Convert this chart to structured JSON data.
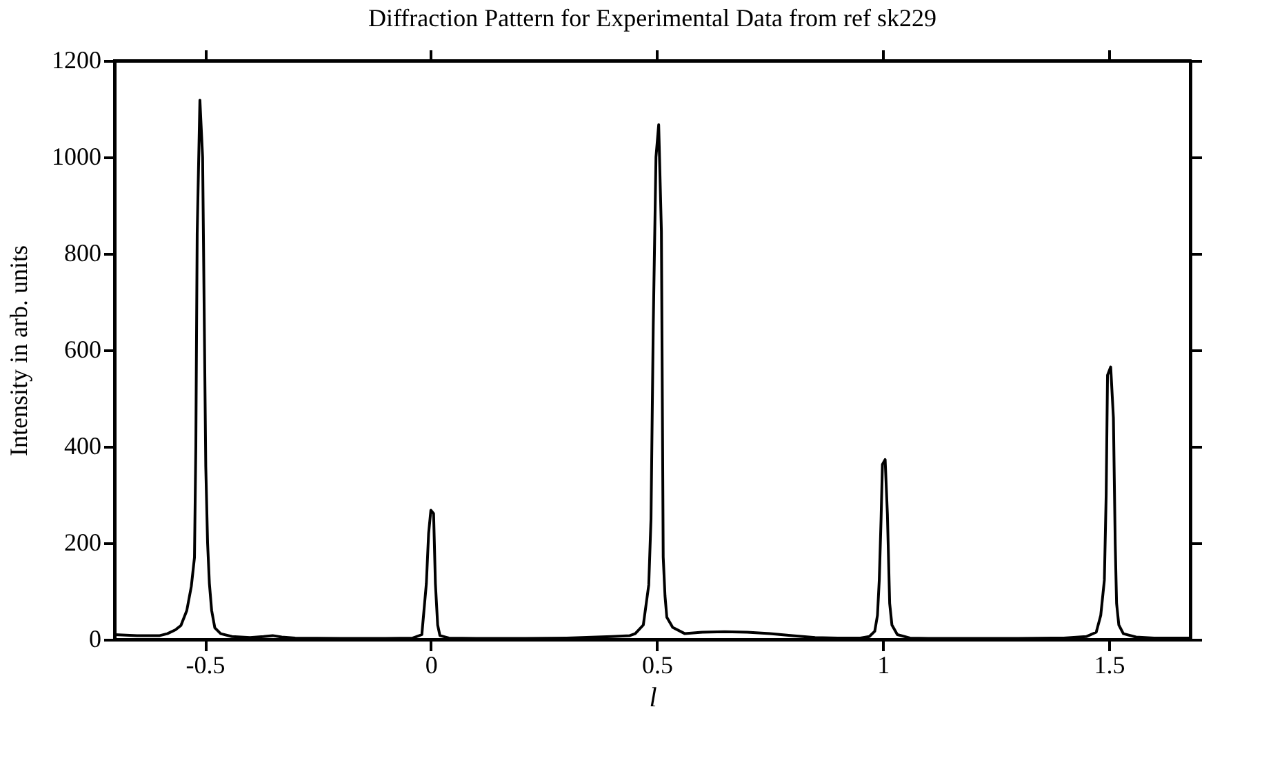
{
  "chart_data": {
    "type": "line",
    "title": "Diffraction Pattern for Experimental Data from ref sk229",
    "xlabel": "l",
    "ylabel": "Intensity in arb. units",
    "series": [
      {
        "color": "#000000",
        "x": [
          -0.7,
          -0.65,
          -0.6,
          -0.583,
          -0.565,
          -0.553,
          -0.54,
          -0.53,
          -0.523,
          -0.52,
          -0.517,
          -0.511,
          -0.505,
          -0.498,
          -0.494,
          -0.49,
          -0.485,
          -0.478,
          -0.465,
          -0.44,
          -0.4,
          -0.37,
          -0.35,
          -0.33,
          -0.3,
          -0.2,
          -0.1,
          -0.04,
          -0.02,
          -0.01,
          -0.005,
          0.0,
          0.006,
          0.01,
          0.015,
          0.02,
          0.04,
          0.1,
          0.2,
          0.3,
          0.4,
          0.44,
          0.452,
          0.47,
          0.482,
          0.487,
          0.492,
          0.498,
          0.504,
          0.51,
          0.514,
          0.518,
          0.522,
          0.535,
          0.562,
          0.6,
          0.65,
          0.7,
          0.75,
          0.8,
          0.85,
          0.9,
          0.95,
          0.97,
          0.982,
          0.988,
          0.992,
          0.996,
          0.999,
          1.005,
          1.01,
          1.015,
          1.02,
          1.032,
          1.06,
          1.1,
          1.2,
          1.3,
          1.4,
          1.45,
          1.472,
          1.482,
          1.49,
          1.494,
          1.497,
          1.504,
          1.51,
          1.514,
          1.517,
          1.522,
          1.532,
          1.56,
          1.6,
          1.65,
          1.68
        ],
        "values": [
          10,
          8,
          8,
          12,
          20,
          29,
          60,
          110,
          170,
          400,
          842,
          1118,
          1000,
          358,
          200,
          116,
          60,
          24,
          12,
          6,
          4,
          6,
          8,
          5,
          3,
          2,
          2,
          3,
          10,
          116,
          220,
          268,
          261,
          116,
          30,
          8,
          3,
          2,
          2,
          3,
          6,
          8,
          12,
          30,
          113,
          250,
          652,
          1000,
          1067,
          846,
          171,
          90,
          46,
          25,
          12,
          15,
          16,
          15,
          12,
          8,
          4,
          3,
          3,
          6,
          17,
          50,
          123,
          250,
          363,
          373,
          260,
          75,
          30,
          10,
          3,
          2,
          2,
          2,
          3,
          6,
          15,
          50,
          123,
          300,
          548,
          565,
          460,
          200,
          75,
          30,
          12,
          5,
          3,
          3,
          3
        ]
      }
    ],
    "xlim": [
      -0.7,
      1.68
    ],
    "xticks": [
      -0.5,
      0,
      0.5,
      1,
      1.5
    ],
    "ylim": [
      0,
      1200
    ],
    "yticks": [
      0,
      200,
      400,
      600,
      800,
      1000,
      1200
    ],
    "grid": false,
    "marker": "none",
    "line_style": "solid"
  }
}
